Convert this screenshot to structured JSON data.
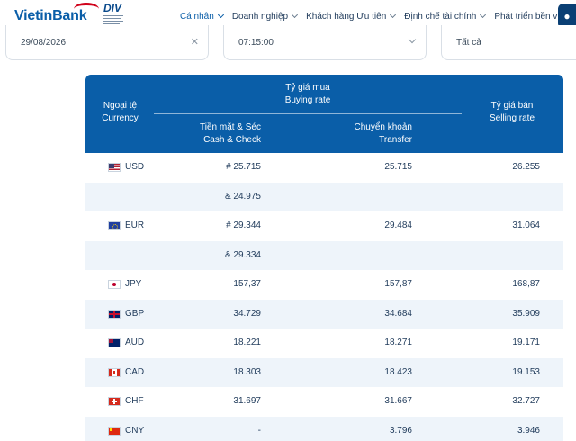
{
  "header": {
    "logo_text": "VietinBank",
    "badge_title": "DIV",
    "nav": [
      {
        "label": "Cá nhân"
      },
      {
        "label": "Doanh nghiệp"
      },
      {
        "label": "Khách hàng Ưu tiên"
      },
      {
        "label": "Định chế tài chính"
      },
      {
        "label": "Phát triển bền vững"
      }
    ],
    "colors": {
      "brand": "#0a5ea8",
      "accent": "#d0021b",
      "nav_active": "#0a5ea8"
    }
  },
  "filters": {
    "date": {
      "value": "29/08/2026",
      "clear_icon": "close-icon"
    },
    "time": {
      "value": "07:15:00",
      "icon": "chevron-down-icon"
    },
    "currency": {
      "value": "Tất cả"
    }
  },
  "table": {
    "headers": {
      "currency_vi": "Ngoại tệ",
      "currency_en": "Currency",
      "buy_vi": "Tỷ giá mua",
      "buy_en": "Buying rate",
      "cash_vi": "Tiền mặt & Séc",
      "cash_en": "Cash & Check",
      "transfer_vi": "Chuyển khoản",
      "transfer_en": "Transfer",
      "sell_vi": "Tỷ giá bán",
      "sell_en": "Selling rate"
    },
    "header_color": "#0a5ea8",
    "rows": [
      {
        "code": "USD",
        "flag": "usd-flag-icon",
        "cash": "# 25.715",
        "transfer": "25.715",
        "sell": "26.255"
      },
      {
        "code": "",
        "flag": "",
        "cash": "& 24.975",
        "transfer": "",
        "sell": ""
      },
      {
        "code": "EUR",
        "flag": "eur-flag-icon",
        "cash": "# 29.344",
        "transfer": "29.484",
        "sell": "31.064"
      },
      {
        "code": "",
        "flag": "",
        "cash": "& 29.334",
        "transfer": "",
        "sell": ""
      },
      {
        "code": "JPY",
        "flag": "jpy-flag-icon",
        "cash": "157,37",
        "transfer": "157,87",
        "sell": "168,87"
      },
      {
        "code": "GBP",
        "flag": "gbp-flag-icon",
        "cash": "34.729",
        "transfer": "34.684",
        "sell": "35.909"
      },
      {
        "code": "AUD",
        "flag": "aud-flag-icon",
        "cash": "18.221",
        "transfer": "18.271",
        "sell": "19.171"
      },
      {
        "code": "CAD",
        "flag": "cad-flag-icon",
        "cash": "18.303",
        "transfer": "18.423",
        "sell": "19.153"
      },
      {
        "code": "CHF",
        "flag": "chf-flag-icon",
        "cash": "31.697",
        "transfer": "31.667",
        "sell": "32.727"
      },
      {
        "code": "CNY",
        "flag": "cny-flag-icon",
        "cash": "-",
        "transfer": "3.796",
        "sell": "3.946"
      }
    ]
  }
}
